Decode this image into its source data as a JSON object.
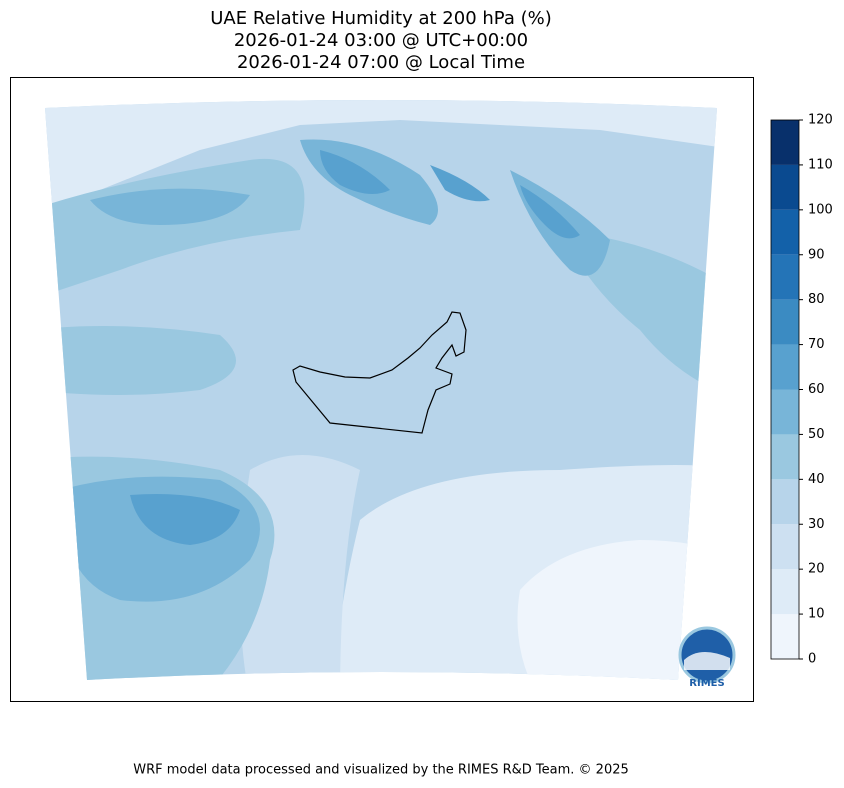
{
  "title": [
    "UAE Relative Humidity at 200 hPa (%)",
    "2026-01-24 03:00 @ UTC+00:00",
    "2026-01-24 07:00 @ Local Time"
  ],
  "colorbar": {
    "lim": [
      0,
      120
    ],
    "ticks": [
      0,
      10,
      20,
      30,
      40,
      50,
      60,
      70,
      80,
      90,
      100,
      110,
      120
    ],
    "colors": [
      "#eff5fc",
      "#deebf7",
      "#cde0f1",
      "#b7d4ea",
      "#9ac8e0",
      "#78b5d8",
      "#58a1cf",
      "#3b8bc2",
      "#2474b7",
      "#1361a9",
      "#0a4a90",
      "#08306b"
    ]
  },
  "logo": "RIMES",
  "footer": "WRF model data processed and visualized by the RIMES R&D Team. © 2025"
}
